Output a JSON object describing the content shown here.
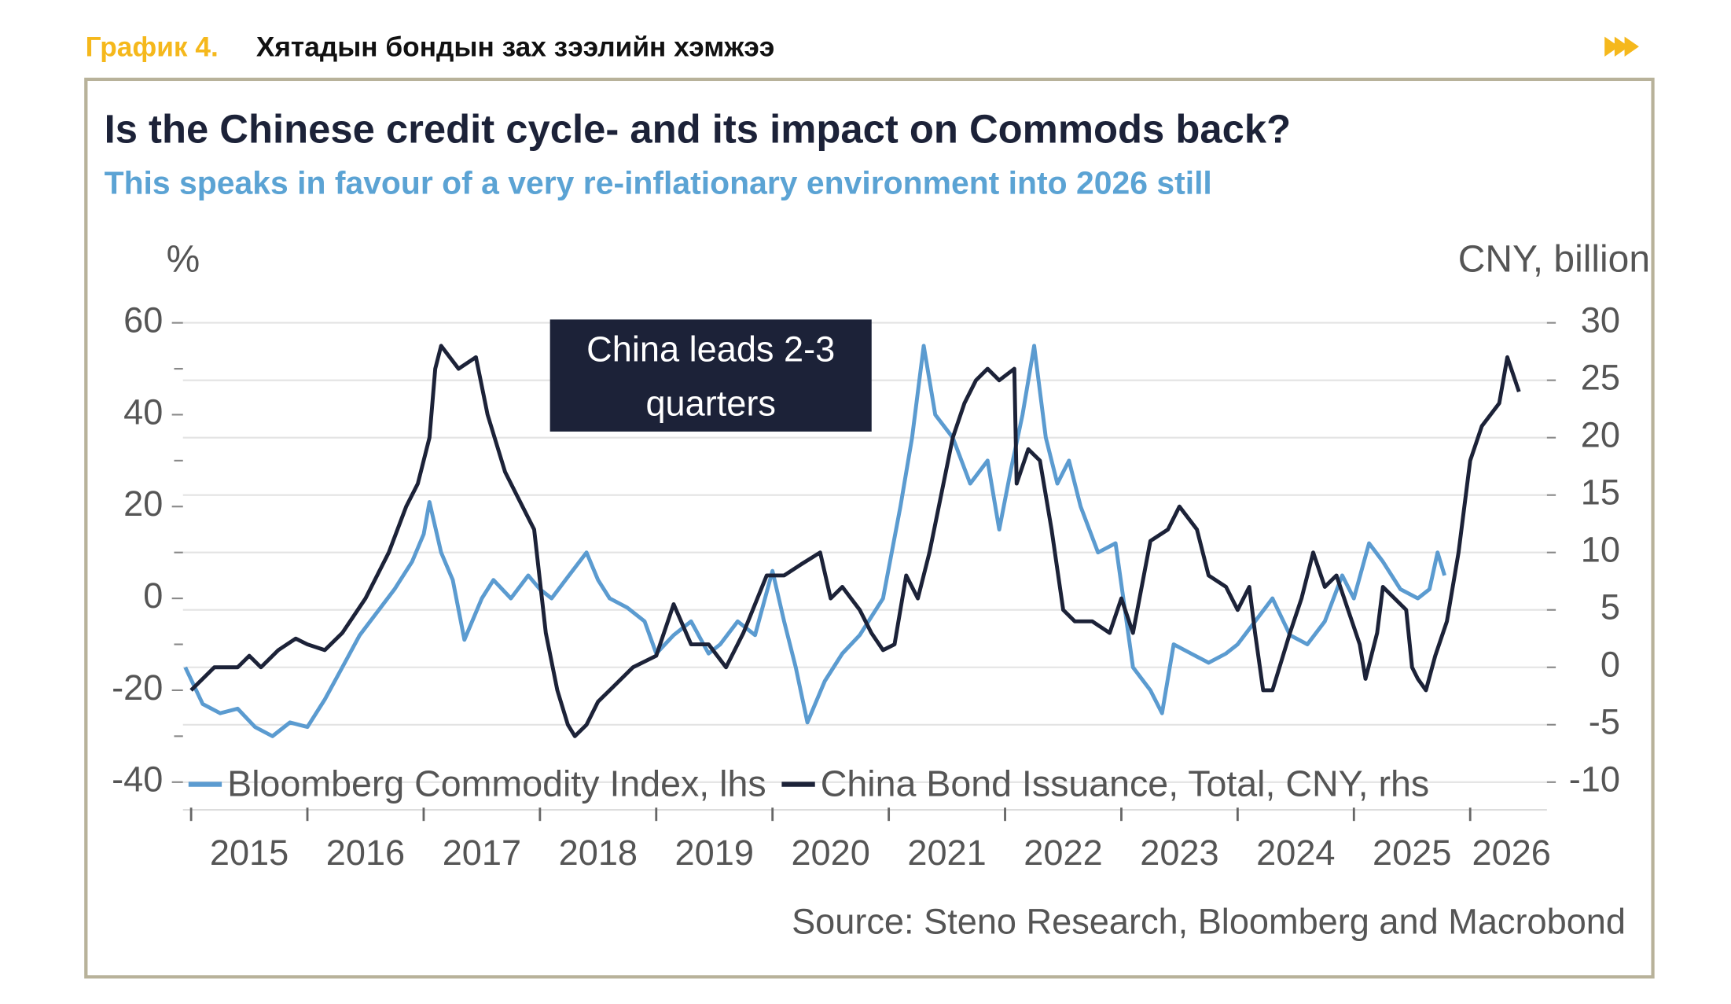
{
  "header": {
    "label": "График 4.",
    "title": "Хятадын бондын зах зээлийн хэмжээ"
  },
  "chart_data": {
    "type": "line",
    "title": "Is the Chinese credit cycle- and its impact on Commods back?",
    "subtitle": "This speaks in favour of a very re-inflationary environment into 2026 still",
    "y_label": "%",
    "y2_label": "CNY, billion",
    "annotation": "China leads 2-3 quarters",
    "source": "Source: Steno Research, Bloomberg and Macrobond",
    "xlim": [
      2014.93,
      2026.66
    ],
    "xticks": [
      2015,
      2016,
      2017,
      2018,
      2019,
      2020,
      2021,
      2022,
      2023,
      2024,
      2025,
      2026
    ],
    "ylim": [
      -40,
      60
    ],
    "yticks": [
      -40,
      -20,
      0,
      20,
      40,
      60
    ],
    "yminorticks": [
      -30,
      -10,
      10,
      30,
      50
    ],
    "y2lim": [
      -10,
      30
    ],
    "y2ticks": [
      -10,
      -5,
      0,
      5,
      10,
      15,
      20,
      25,
      30
    ],
    "grid": true,
    "legend": "bottom-left",
    "series": [
      {
        "name": "Bloomberg Commodity Index, lhs",
        "color": "#5b9bd0",
        "axis": "y",
        "x": [
          2014.95,
          2015.1,
          2015.25,
          2015.4,
          2015.55,
          2015.7,
          2015.85,
          2016.0,
          2016.15,
          2016.3,
          2016.45,
          2016.6,
          2016.75,
          2016.9,
          2017.0,
          2017.05,
          2017.15,
          2017.25,
          2017.35,
          2017.5,
          2017.6,
          2017.75,
          2017.9,
          2018.0,
          2018.1,
          2018.25,
          2018.4,
          2018.5,
          2018.6,
          2018.75,
          2018.9,
          2019.0,
          2019.15,
          2019.3,
          2019.45,
          2019.55,
          2019.7,
          2019.85,
          2020.0,
          2020.1,
          2020.2,
          2020.3,
          2020.45,
          2020.6,
          2020.75,
          2020.95,
          2021.1,
          2021.2,
          2021.3,
          2021.4,
          2021.55,
          2021.7,
          2021.85,
          2021.95,
          2022.05,
          2022.15,
          2022.25,
          2022.35,
          2022.45,
          2022.55,
          2022.65,
          2022.8,
          2022.95,
          2023.05,
          2023.1,
          2023.25,
          2023.35,
          2023.45,
          2023.6,
          2023.75,
          2023.9,
          2024.0,
          2024.15,
          2024.3,
          2024.45,
          2024.6,
          2024.75,
          2024.9,
          2025.0,
          2025.13,
          2025.25,
          2025.4,
          2025.55,
          2025.65,
          2025.72,
          2025.78
        ],
        "values": [
          -15,
          -23,
          -25,
          -24,
          -28,
          -30,
          -27,
          -28,
          -22,
          -15,
          -8,
          -3,
          2,
          8,
          14,
          21,
          10,
          4,
          -9,
          0,
          4,
          0,
          5,
          2,
          0,
          5,
          10,
          4,
          0,
          -2,
          -5,
          -12,
          -8,
          -5,
          -12,
          -10,
          -5,
          -8,
          6,
          -5,
          -15,
          -27,
          -18,
          -12,
          -8,
          0,
          20,
          35,
          55,
          40,
          35,
          25,
          30,
          15,
          28,
          40,
          55,
          35,
          25,
          30,
          20,
          10,
          12,
          -6,
          -15,
          -20,
          -25,
          -10,
          -12,
          -14,
          -12,
          -10,
          -5,
          0,
          -8,
          -10,
          -5,
          5,
          0,
          12,
          8,
          2,
          0,
          2,
          10,
          5
        ]
      },
      {
        "name": "China Bond Issuance, Total, CNY, rhs",
        "color": "#1c2238",
        "axis": "y2",
        "x": [
          2015.0,
          2015.2,
          2015.4,
          2015.5,
          2015.6,
          2015.75,
          2015.9,
          2016.0,
          2016.15,
          2016.3,
          2016.5,
          2016.7,
          2016.85,
          2016.95,
          2017.05,
          2017.1,
          2017.15,
          2017.3,
          2017.45,
          2017.55,
          2017.7,
          2017.85,
          2017.95,
          2018.05,
          2018.15,
          2018.24,
          2018.3,
          2018.4,
          2018.5,
          2018.6,
          2018.7,
          2018.8,
          2019.0,
          2019.15,
          2019.3,
          2019.45,
          2019.6,
          2019.75,
          2019.95,
          2020.1,
          2020.25,
          2020.41,
          2020.5,
          2020.6,
          2020.75,
          2020.85,
          2020.95,
          2021.05,
          2021.15,
          2021.25,
          2021.35,
          2021.45,
          2021.55,
          2021.65,
          2021.75,
          2021.85,
          2021.95,
          2022.08,
          2022.1,
          2022.2,
          2022.3,
          2022.4,
          2022.5,
          2022.6,
          2022.75,
          2022.9,
          2023.0,
          2023.1,
          2023.25,
          2023.4,
          2023.5,
          2023.65,
          2023.75,
          2023.9,
          2024.0,
          2024.1,
          2024.15,
          2024.22,
          2024.3,
          2024.45,
          2024.55,
          2024.65,
          2024.75,
          2024.85,
          2024.95,
          2025.05,
          2025.1,
          2025.2,
          2025.25,
          2025.35,
          2025.45,
          2025.5,
          2025.55,
          2025.62,
          2025.7,
          2025.8,
          2025.9,
          2026.0,
          2026.1,
          2026.25,
          2026.32,
          2026.42
        ],
        "values": [
          -2,
          0,
          0,
          1,
          0,
          1.5,
          2.5,
          2,
          1.5,
          3,
          6,
          10,
          14,
          16,
          20,
          26,
          28,
          26,
          27,
          22,
          17,
          14,
          12,
          3,
          -2,
          -5,
          -6,
          -5,
          -3,
          -2,
          -1,
          0,
          1,
          5.5,
          2,
          2,
          0,
          3,
          8,
          8,
          9,
          10,
          6,
          7,
          5,
          3,
          1.5,
          2,
          8,
          6,
          10,
          15,
          20,
          23,
          25,
          26,
          25,
          26,
          16,
          19,
          18,
          12,
          5,
          4,
          4,
          3,
          6,
          3,
          11,
          12,
          14,
          12,
          8,
          7,
          5,
          7,
          3,
          -2,
          -2,
          3,
          6,
          10,
          7,
          8,
          5,
          2,
          -1,
          3,
          7,
          6,
          5,
          0,
          -1,
          -2,
          1,
          4,
          10,
          18,
          21,
          23,
          27,
          24
        ]
      }
    ]
  }
}
